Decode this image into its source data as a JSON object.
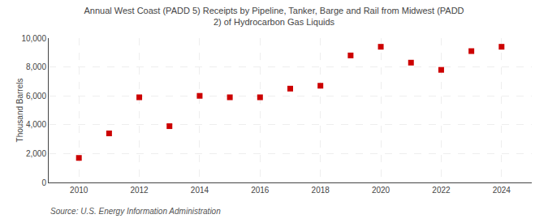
{
  "chart_data": {
    "type": "scatter",
    "title": "Annual West Coast (PADD 5) Receipts by Pipeline, Tanker, Barge and Rail from Midwest (PADD\n2) of Hydrocarbon Gas Liquids",
    "ylabel": "Thousand Barrels",
    "annotations": [
      "Source: U.S. Energy Information Administration"
    ],
    "x": [
      2010,
      2011,
      2012,
      2013,
      2014,
      2015,
      2016,
      2017,
      2018,
      2019,
      2020,
      2021,
      2022,
      2023,
      2024
    ],
    "values": [
      1700,
      3400,
      5900,
      3900,
      6000,
      5900,
      5900,
      6500,
      6700,
      8800,
      9400,
      8300,
      7800,
      9100,
      9400
    ],
    "color": "#cc0000",
    "marker": "square",
    "xlim": [
      2009,
      2025
    ],
    "xticks": [
      2010,
      2012,
      2014,
      2016,
      2018,
      2020,
      2022,
      2024
    ],
    "ylim": [
      0,
      10000
    ],
    "yticks": [
      0,
      {
        "value": 2000,
        "label": "2,000"
      },
      {
        "value": 4000,
        "label": "4,000"
      },
      {
        "value": 6000,
        "label": "6,000"
      },
      {
        "value": 8000,
        "label": "8,000"
      },
      {
        "value": 10000,
        "label": "10,000"
      }
    ],
    "grid": true
  }
}
